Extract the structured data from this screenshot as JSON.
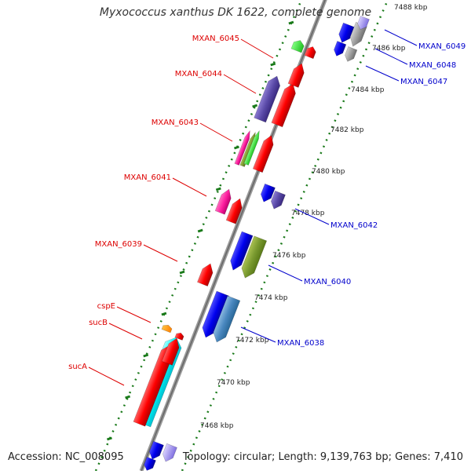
{
  "title": "Myxococcus xanthus DK 1622, complete genome",
  "accession": "Accession: NC_008095",
  "summary": "Topology: circular; Length: 9,139,763 bp; Genes: 7,410",
  "colors": {
    "backbone": "#888888",
    "tick": "#1a7a1a",
    "forward_label": "#dd0000",
    "reverse_label": "#0000cc",
    "scale_text": "#222222"
  },
  "scale_labels": [
    "7468 kbp",
    "7470 kbp",
    "7472 kbp",
    "7474 kbp",
    "7476 kbp",
    "7478 kbp",
    "7480 kbp",
    "7482 kbp",
    "7484 kbp",
    "7486 kbp",
    "7488 kbp"
  ],
  "forward_labels": [
    "MXAN_6045",
    "MXAN_6044",
    "MXAN_6043",
    "MXAN_6041",
    "MXAN_6039",
    "cspE",
    "sucB",
    "sucA"
  ],
  "reverse_labels": [
    "MXAN_6049",
    "MXAN_6048",
    "MXAN_6047",
    "MXAN_6042",
    "MXAN_6040",
    "MXAN_6038"
  ]
}
